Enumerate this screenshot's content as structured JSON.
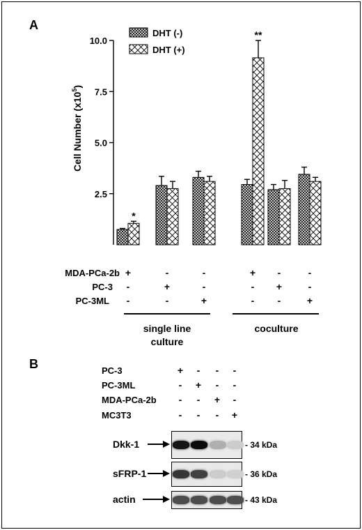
{
  "panelA": {
    "label": "A",
    "chart_data": {
      "type": "bar",
      "ylabel": "Cell Number (x10",
      "ylabel_sup": "5",
      "ylabel_end": ")",
      "ylim": [
        0,
        10
      ],
      "yticks": [
        "10.0",
        "7.5",
        "5.0",
        "2.5"
      ],
      "ytick_values": [
        10,
        7.5,
        5,
        2.5
      ],
      "series": [
        {
          "name": "DHT (-)",
          "values": [
            0.75,
            2.9,
            3.3,
            2.95,
            2.7,
            3.45
          ],
          "errors": [
            0.05,
            0.45,
            0.3,
            0.25,
            0.25,
            0.35
          ],
          "pattern": "crosshatch-dense"
        },
        {
          "name": "DHT (+)",
          "values": [
            1.05,
            2.75,
            3.1,
            9.15,
            2.75,
            3.1
          ],
          "errors": [
            0.1,
            0.35,
            0.25,
            0.85,
            0.4,
            0.2
          ],
          "pattern": "crosshatch-open"
        }
      ],
      "significance": [
        {
          "group": 0,
          "series": 1,
          "mark": "*"
        },
        {
          "group": 3,
          "series": 1,
          "mark": "**"
        }
      ],
      "condition_rows": [
        {
          "label": "MDA-PCa-2b",
          "signs": [
            "+",
            "-",
            "-",
            "+",
            "-",
            "-"
          ]
        },
        {
          "label": "PC-3",
          "signs": [
            "-",
            "+",
            "-",
            "-",
            "+",
            "-"
          ]
        },
        {
          "label": "PC-3ML",
          "signs": [
            "-",
            "-",
            "+",
            "-",
            "-",
            "+"
          ]
        }
      ],
      "group_labels": [
        {
          "lines": [
            "single line",
            "culture"
          ]
        },
        {
          "lines": [
            "coculture"
          ]
        }
      ]
    }
  },
  "panelB": {
    "label": "B",
    "lane_rows": [
      {
        "label": "PC-3",
        "signs": [
          "+",
          "-",
          "-",
          "-"
        ]
      },
      {
        "label": "PC-3ML",
        "signs": [
          "-",
          "+",
          "-",
          "-"
        ]
      },
      {
        "label": "MDA-PCa-2b",
        "signs": [
          "-",
          "-",
          "+",
          "-"
        ]
      },
      {
        "label": "MC3T3",
        "signs": [
          "-",
          "-",
          "-",
          "+"
        ]
      }
    ],
    "blots": [
      {
        "name": "Dkk-1",
        "size": "- 34 kDa",
        "intensity": [
          0.95,
          1.0,
          0.25,
          0.12
        ]
      },
      {
        "name": "sFRP-1",
        "size": "- 36 kDa",
        "intensity": [
          0.8,
          0.75,
          0.12,
          0.1
        ]
      },
      {
        "name": "actin",
        "size": "- 43 kDa",
        "intensity": [
          0.7,
          0.7,
          0.7,
          0.7
        ]
      }
    ]
  }
}
